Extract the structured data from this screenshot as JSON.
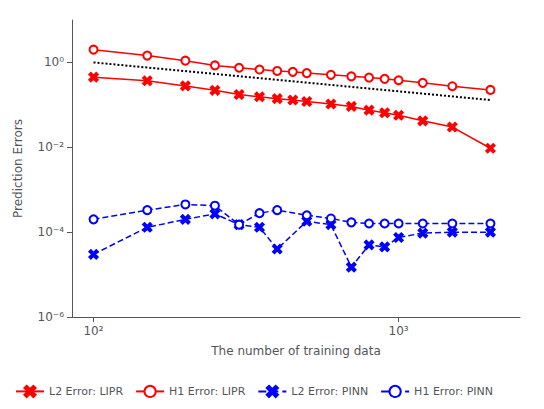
{
  "chart_data": {
    "type": "line",
    "xlabel": "The number of training data",
    "ylabel": "Prediction Errors",
    "log": true,
    "xlim": [
      85,
      2500
    ],
    "ylim": [
      1e-06,
      10
    ],
    "xticks": [
      {
        "value": 100,
        "label": "10²"
      },
      {
        "value": 1000,
        "label": "10³"
      }
    ],
    "yticks": [
      {
        "value": 1e-06,
        "label": "10⁻⁶"
      },
      {
        "value": 0.0001,
        "label": "10⁻⁴"
      },
      {
        "value": 0.01,
        "label": "10⁻²"
      },
      {
        "value": 1,
        "label": "10⁰"
      }
    ],
    "grid": false,
    "legend": "lower left",
    "series": [
      {
        "name": "L2 Error: LIPR",
        "color": "#FF0000",
        "marker": "x",
        "line_style": "solid",
        "x": [
          100,
          150,
          200,
          250,
          300,
          350,
          400,
          450,
          500,
          600,
          700,
          800,
          900,
          1000,
          1200,
          1500,
          2000
        ],
        "values": [
          0.45,
          0.37,
          0.28,
          0.22,
          0.175,
          0.155,
          0.14,
          0.13,
          0.12,
          0.105,
          0.092,
          0.075,
          0.065,
          0.057,
          0.042,
          0.03,
          0.0095
        ]
      },
      {
        "name": "H1 Error: LIPR",
        "color": "#FF0000",
        "marker": "circle",
        "line_style": "solid",
        "x": [
          100,
          150,
          200,
          250,
          300,
          350,
          400,
          450,
          500,
          600,
          700,
          800,
          900,
          1000,
          1200,
          1500,
          2000
        ],
        "values": [
          2.0,
          1.45,
          1.1,
          0.85,
          0.75,
          0.68,
          0.63,
          0.6,
          0.56,
          0.51,
          0.47,
          0.44,
          0.41,
          0.38,
          0.33,
          0.275,
          0.225
        ]
      },
      {
        "color": "#000000",
        "marker": "none",
        "line_style": "dotted",
        "x": [
          100,
          2000
        ],
        "values": [
          1.0,
          0.13
        ]
      },
      {
        "name": "L2 Error: PINN",
        "color": "#0000FF",
        "marker": "x",
        "line_style": "dashed",
        "x": [
          100,
          150,
          200,
          250,
          300,
          350,
          400,
          500,
          600,
          700,
          800,
          900,
          1000,
          1200,
          1500,
          2000
        ],
        "values": [
          3e-05,
          0.00013,
          0.0002,
          0.00027,
          0.00015,
          0.00013,
          4e-05,
          0.00018,
          0.00015,
          1.5e-05,
          5e-05,
          4.5e-05,
          7.5e-05,
          9.5e-05,
          0.0001,
          0.0001
        ]
      },
      {
        "name": "H1 Error: PINN",
        "color": "#0000FF",
        "marker": "circle",
        "line_style": "dashed",
        "x": [
          100,
          150,
          200,
          250,
          300,
          350,
          400,
          500,
          600,
          700,
          800,
          900,
          1000,
          1200,
          1500,
          2000
        ],
        "values": [
          0.0002,
          0.00033,
          0.00045,
          0.00042,
          0.00015,
          0.00028,
          0.00033,
          0.00025,
          0.00021,
          0.00017,
          0.00016,
          0.00016,
          0.00016,
          0.00016,
          0.00016,
          0.00016
        ]
      }
    ]
  }
}
